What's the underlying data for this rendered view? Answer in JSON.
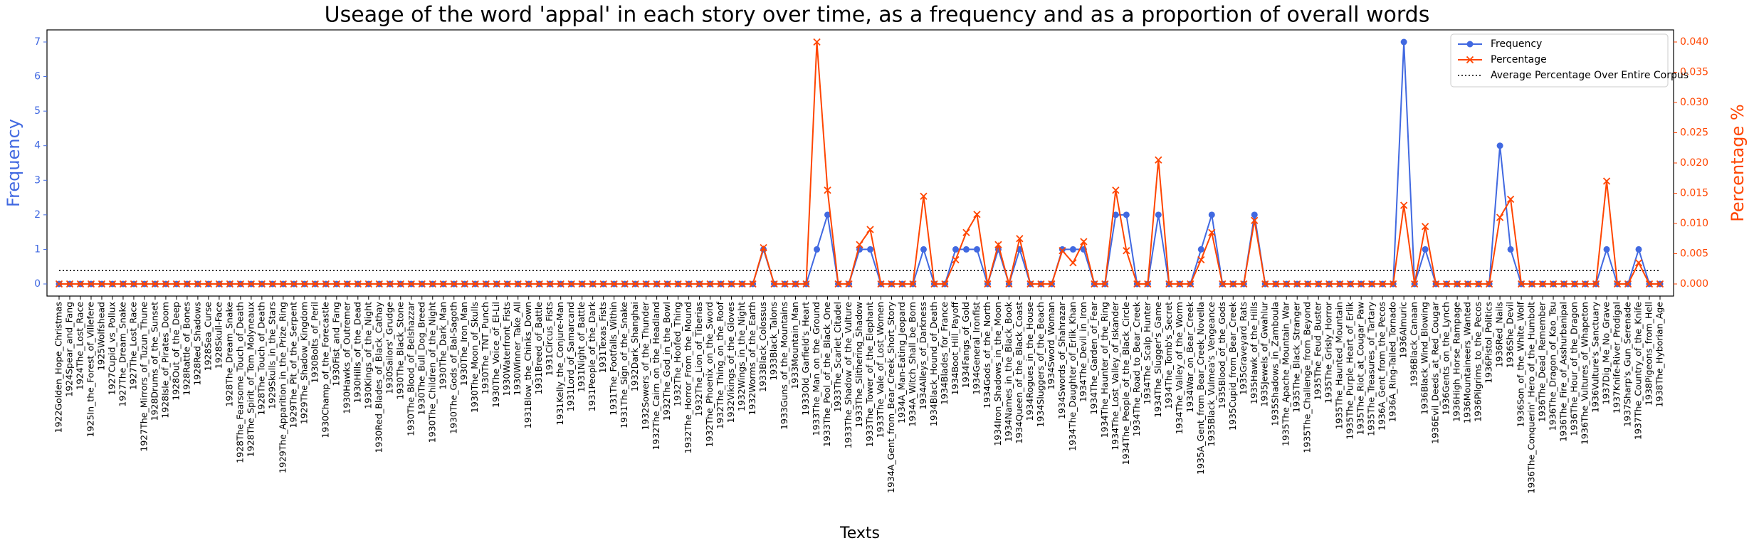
{
  "chart_data": {
    "type": "line",
    "title": "Useage of the word 'appal' in each story over time, as a frequency and as a proportion of overall words",
    "xlabel": "Texts",
    "ylabel": "Frequency",
    "y2label": "Percentage %",
    "categories": [
      "1922Golden_Hope_Christmas",
      "1924Spear_and_Fang",
      "1924The_Lost_Race",
      "1925In_the_Forest_of_Villefere",
      "1925Wolfshead",
      "1927Cupid_vs_Pollux",
      "1927The_Dream_Snake",
      "1927The_Lost_Race",
      "1927The_Mirrors_of_Tuzun_Thune",
      "1928Drums_of_the_Sunset",
      "1928Isle_of_Pirates_Doom",
      "1928Out_of_the_Deep",
      "1928Rattle_of_Bones",
      "1928Red_Shadows",
      "1928Sea_Curse",
      "1928Skull-Face",
      "1928The_Dream_Snake",
      "1928The_Fearsome_Touch_of_Death",
      "1928The_Spirit_of_Tom_Molyneaux",
      "1928The_Touch_of_Death",
      "1929Skulls_in_the_Stars",
      "1929The_Apparition_in_the_Prize_Ring",
      "1929The_Pit_of_the_Serpent",
      "1929The_Shadow_Kingdom",
      "1930Bolts_of_Peril",
      "1930Champ_of_the_Forecastle",
      "1930Fist_and_Fang",
      "1930Hawks_of_Outremer",
      "1930Hills_of_the_Dead",
      "1930Kings_of_the_Night",
      "1930Red_Blades_of_Black_Cathay",
      "1930Sailors'_Grudge",
      "1930The_Black_Stone",
      "1930The_Blood_of_Belshazzar",
      "1930The_Bull_Dog_Breed",
      "1930The_Children_of_the_Night",
      "1930The_Dark_Man",
      "1930The_Gods_of_Bal-Sagoth",
      "1930The_Iron_Man",
      "1930The_Moon_of_Skulls",
      "1930The_TNT_Punch",
      "1930The_Voice_of_El-Lil",
      "1930Waterfront_Fists",
      "1930Winner_Take_All",
      "1931Blow_the_Chinks_Down",
      "1931Breed_of_Battle",
      "1931Circus_Fists",
      "1931Kelly_the_Conjure-Man",
      "1931Lord_of_Samarcand",
      "1931Night_of_Battle",
      "1931People_of_the_Dark",
      "1931Texas_Fists",
      "1931The_Footfalls_Within",
      "1931The_Sign_of_the_Snake",
      "1932Dark_Shanghai",
      "1932Sowers_of_the_Thunder",
      "1932The_Cairn_on_the_Headland",
      "1932The_God_in_the_Bowl",
      "1932The_Hoofed_Thing",
      "1932The_Horror_From_the_Mound",
      "1932The_Lion_of_Tiberias",
      "1932The_Phoenix_on_the_Sword",
      "1932The_Thing_on_the_Roof",
      "1932Vikings_of_the_Gloves",
      "1932Wings_in_the_Night",
      "1932Worms_of_the_Earth",
      "1933Black_Colossus",
      "1933Black_Talons",
      "1933Guns_of_the_Mountains",
      "1933Mountain_Man",
      "1933Old_Garfield's_Heart",
      "1933The_Man_on_the_Ground",
      "1933The_Pool_of_the_Black_One",
      "1933The_Scarlet_Citadel",
      "1933The_Shadow_of_the_Vulture",
      "1933The_Slithering_Shadow",
      "1933The_Tower_of_the_Elephant",
      "1933The_Vale_of_Lost_Women",
      "1934A_Gent_from_Bear_Creek_Short_Story",
      "1934A_Man-Eating_Jeopard",
      "1934A_Witch_Shall_be_Born",
      "1934Alleys_of_Darkness",
      "1934Black_Hound_of_Death",
      "1934Blades_for_France",
      "1934Boot_Hill_Payoff",
      "1934Fangs_of_Gold",
      "1934General_Ironfist",
      "1934Gods_of_the_North",
      "1934Iron_Shadows_in_the_Moon",
      "1934Names_in_the_Black_Book",
      "1934Queen_of_the_Black_Coast",
      "1934Rogues_in_the_House",
      "1934Sluggers_of_the_Beach",
      "1934Sword_Woman",
      "1934Swords_of_Shahrazar",
      "1934The_Daughter_of_Erlik_Khan",
      "1934The_Devil_in_Iron",
      "1934The_Garden_of_Fear",
      "1934The_Haunter_of_the_Ring",
      "1934The_Lost_Valley_of_Iskander",
      "1934The_People_of_the_Black_Circle",
      "1934The_Road_to_Bear_Creek",
      "1934The_Scalp_Hunter",
      "1934The_Slugger's_Game",
      "1934The_Tomb's_Secret",
      "1934The_Valley_of_the_Worm",
      "1934War_on_Bear_Creek",
      "1935A_Gent_from_Bear_Creek_Novella",
      "1935Black_Vulmea's_Vengeance",
      "1935Blood_of_the_Gods",
      "1935Cupid_from_Bear_Creek",
      "1935Graveyard_Rats",
      "1935Hawk_of_the_Hills",
      "1935Jewels_of_Gwahlur",
      "1935Shadows_in_Zamboula",
      "1935The_Apache_Mountain_War",
      "1935The_Black_Stranger",
      "1935The_Challenge_from_Beyond",
      "1935The_Feud_Buster",
      "1935The_Grisly_Horror",
      "1935The_Haunted_Mountain",
      "1935The_Purple_Heart_of_Erlik",
      "1935The_Riot_at_Cougar_Paw",
      "1935The_Treasures_of_Tartary",
      "1936A_Gent_from_the_Pecos",
      "1936A_Ring-Tailed_Tornado",
      "1936Almuric",
      "1936Black_Canaan",
      "1936Black_Wind_Blowing",
      "1936Evil_Deeds_at_Red_Cougar",
      "1936Gents_on_the_Lynch",
      "1936High_Horse_Rampage",
      "1936Mountaineers_Wanted",
      "1936Pilgrims_to_the_Pecos",
      "1936Pistol_Politics",
      "1936Red_Nails",
      "1936She_Devil",
      "1936Son_of_the_White_Wolf",
      "1936The_Conquerin'_Hero_of_the_Humbolt",
      "1936The_Dead_Remember",
      "1936The_Dragon_of_Kao_Tsu",
      "1936The_Fire_of_Asshurbanipal",
      "1936The_Hour_of_the_Dragon",
      "1936The_Vultures_of_Whapeton",
      "1936Vulture's_Sanctuary",
      "1937Dig_Me_No_Grave",
      "1937Knife-River_Prodigal",
      "1937Sharp's_Gun_Serenade",
      "1937The_Country_of_the_Knife",
      "1938Pigeons_from_Hell",
      "1938The_Hyborian_Age"
    ],
    "series": [
      {
        "name": "Frequency",
        "color": "#4169e1",
        "marker": "o",
        "values": [
          0,
          0,
          0,
          0,
          0,
          0,
          0,
          0,
          0,
          0,
          0,
          0,
          0,
          0,
          0,
          0,
          0,
          0,
          0,
          0,
          0,
          0,
          0,
          0,
          0,
          0,
          0,
          0,
          0,
          0,
          0,
          0,
          0,
          0,
          0,
          0,
          0,
          0,
          0,
          0,
          0,
          0,
          0,
          0,
          0,
          0,
          0,
          0,
          0,
          0,
          0,
          0,
          0,
          0,
          0,
          0,
          0,
          0,
          0,
          0,
          0,
          0,
          0,
          0,
          0,
          0,
          1,
          0,
          0,
          0,
          0,
          1,
          2,
          0,
          0,
          1,
          1,
          0,
          0,
          0,
          0,
          1,
          0,
          0,
          1,
          1,
          1,
          0,
          1,
          0,
          1,
          0,
          0,
          0,
          1,
          1,
          1,
          0,
          0,
          2,
          2,
          0,
          0,
          2,
          0,
          0,
          0,
          1,
          2,
          0,
          0,
          0,
          2,
          0,
          0,
          0,
          0,
          0,
          0,
          0,
          0,
          0,
          0,
          0,
          0,
          0,
          7,
          0,
          1,
          0,
          0,
          0,
          0,
          0,
          0,
          4,
          1,
          0,
          0,
          0,
          0,
          0,
          0,
          0,
          0,
          1,
          0,
          0,
          1,
          0,
          0
        ]
      },
      {
        "name": "Percentage",
        "color": "#ff4500",
        "marker": "x",
        "axis": "y2",
        "values": [
          0,
          0,
          0,
          0,
          0,
          0,
          0,
          0,
          0,
          0,
          0,
          0,
          0,
          0,
          0,
          0,
          0,
          0,
          0,
          0,
          0,
          0,
          0,
          0,
          0,
          0,
          0,
          0,
          0,
          0,
          0,
          0,
          0,
          0,
          0,
          0,
          0,
          0,
          0,
          0,
          0,
          0,
          0,
          0,
          0,
          0,
          0,
          0,
          0,
          0,
          0,
          0,
          0,
          0,
          0,
          0,
          0,
          0,
          0,
          0,
          0,
          0,
          0,
          0,
          0,
          0,
          0.006,
          0,
          0,
          0,
          0,
          0.04,
          0.0155,
          0,
          0,
          0.0065,
          0.009,
          0,
          0,
          0,
          0,
          0.0145,
          0,
          0,
          0.004,
          0.0085,
          0.0115,
          0,
          0.0065,
          0,
          0.0075,
          0,
          0,
          0,
          0.0055,
          0.0035,
          0.007,
          0,
          0,
          0.0155,
          0.0055,
          0,
          0,
          0.0205,
          0,
          0,
          0,
          0.004,
          0.0085,
          0,
          0,
          0,
          0.0105,
          0,
          0,
          0,
          0,
          0,
          0,
          0,
          0,
          0,
          0,
          0,
          0,
          0,
          0.013,
          0,
          0.0095,
          0,
          0,
          0,
          0,
          0,
          0,
          0.011,
          0.014,
          0,
          0,
          0,
          0,
          0,
          0,
          0,
          0,
          0.017,
          0,
          0,
          0.0035,
          0,
          0
        ]
      }
    ],
    "hline": {
      "name": "Average Percentage Over Entire Corpus",
      "value": 0.0022,
      "axis": "y2",
      "color": "#000000",
      "style": "dotted"
    },
    "ylim": [
      -0.35,
      7.35
    ],
    "yticks": [
      0,
      1,
      2,
      3,
      4,
      5,
      6,
      7
    ],
    "y2lim": [
      -0.002,
      0.042
    ],
    "y2ticks": [
      {
        "value": 0,
        "label": "0.000"
      },
      {
        "value": 0.005,
        "label": "0.005"
      },
      {
        "value": 0.01,
        "label": "0.010"
      },
      {
        "value": 0.015,
        "label": "0.015"
      },
      {
        "value": 0.02,
        "label": "0.020"
      },
      {
        "value": 0.025,
        "label": "0.025"
      },
      {
        "value": 0.03,
        "label": "0.030"
      },
      {
        "value": 0.035,
        "label": "0.035"
      },
      {
        "value": 0.04,
        "label": "0.040"
      }
    ],
    "grid": false,
    "legend": "upper right"
  }
}
